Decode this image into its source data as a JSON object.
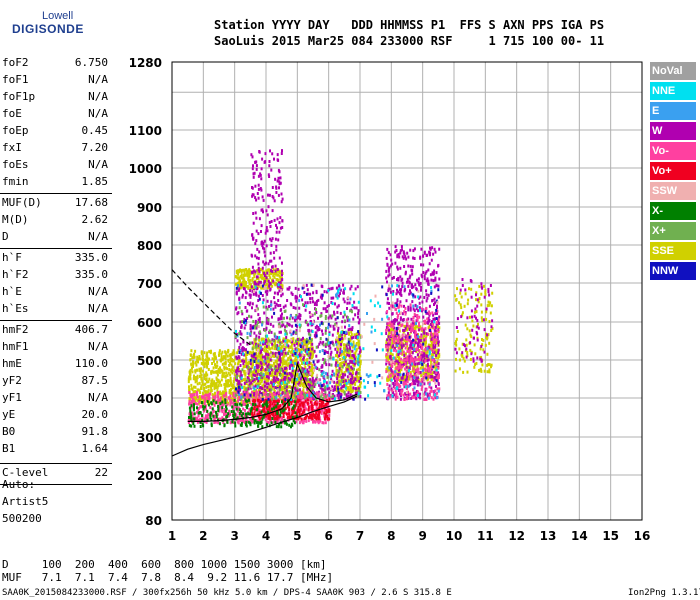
{
  "logo": {
    "line1": "Lowell",
    "line2": "DIGISONDE"
  },
  "header": {
    "row1": "Station YYYY DAY   DDD HHMMSS P1  FFS S AXN PPS IGA PS",
    "row2": "SaoLuis 2015 Mar25 084 233000 RSF     1 715 100 00- 11"
  },
  "params": [
    {
      "label": "foF2",
      "value": "6.750"
    },
    {
      "label": "foF1",
      "value": "N/A"
    },
    {
      "label": "foF1p",
      "value": "N/A"
    },
    {
      "label": "foE",
      "value": "N/A"
    },
    {
      "label": "foEp",
      "value": "0.45"
    },
    {
      "label": "fxI",
      "value": "7.20"
    },
    {
      "label": "foEs",
      "value": "N/A"
    },
    {
      "label": "fmin",
      "value": "1.85"
    },
    {
      "label": "MUF(D)",
      "value": "17.68"
    },
    {
      "label": "M(D)",
      "value": "2.62"
    },
    {
      "label": "D",
      "value": "N/A"
    },
    {
      "label": "h`F",
      "value": "335.0"
    },
    {
      "label": "h`F2",
      "value": "335.0"
    },
    {
      "label": "h`E",
      "value": "N/A"
    },
    {
      "label": "h`Es",
      "value": "N/A"
    },
    {
      "label": "hmF2",
      "value": "406.7"
    },
    {
      "label": "hmF1",
      "value": "N/A"
    },
    {
      "label": "hmE",
      "value": "110.0"
    },
    {
      "label": "yF2",
      "value": "87.5"
    },
    {
      "label": "yF1",
      "value": "N/A"
    },
    {
      "label": "yE",
      "value": "20.0"
    },
    {
      "label": "B0",
      "value": "91.8"
    },
    {
      "label": "B1",
      "value": "1.64"
    },
    {
      "label": "C-level",
      "value": "22"
    }
  ],
  "auto": {
    "line1": "Auto:",
    "line2": "Artist5",
    "line3": "500200"
  },
  "legend": [
    {
      "label": "NoVal",
      "color": "#a0a0a0"
    },
    {
      "label": "NNE",
      "color": "#00e0f0"
    },
    {
      "label": "E",
      "color": "#3aa0f0"
    },
    {
      "label": "W",
      "color": "#b000b0"
    },
    {
      "label": "Vo-",
      "color": "#ff40a0"
    },
    {
      "label": "Vo+",
      "color": "#f00020"
    },
    {
      "label": "SSW",
      "color": "#f0b0b0"
    },
    {
      "label": "X-",
      "color": "#008000"
    },
    {
      "label": "X+",
      "color": "#70b050"
    },
    {
      "label": "SSE",
      "color": "#d0d000"
    },
    {
      "label": "NNW",
      "color": "#1010c0"
    }
  ],
  "footer": {
    "d_row": "D     100  200  400  600  800 1000 1500 3000 [km]",
    "muf_row": "MUF   7.1  7.1  7.4  7.8  8.4  9.2 11.6 17.7 [MHz]",
    "file_info": "SAA0K_2015084233000.RSF / 300fx256h 50 kHz 5.0 km / DPS-4 SAA0K 903 / 2.6 S 315.8 E",
    "version": "Ion2Png 1.3.17"
  },
  "chart_data": {
    "type": "scatter",
    "title": "",
    "xlabel": "",
    "ylabel": "",
    "xlim": [
      1,
      16
    ],
    "ylim": [
      80,
      1280
    ],
    "x_ticks": [
      1,
      2,
      3,
      4,
      5,
      6,
      7,
      8,
      9,
      10,
      11,
      12,
      13,
      14,
      15,
      16
    ],
    "y_ticks": [
      80,
      200,
      300,
      400,
      500,
      600,
      700,
      800,
      900,
      1000,
      1100,
      1280
    ],
    "grid": true,
    "legend_position": "right",
    "profile_curve": {
      "x": [
        1.0,
        1.5,
        2.0,
        2.5,
        3.0,
        3.5,
        4.0,
        4.5,
        5.0,
        5.5,
        6.0,
        6.5,
        6.9
      ],
      "y": [
        250,
        268,
        280,
        290,
        300,
        312,
        325,
        338,
        350,
        365,
        378,
        390,
        405
      ]
    },
    "trace_curve": {
      "x": [
        1.5,
        2.0,
        2.5,
        3.0,
        3.5,
        4.0,
        4.5,
        4.8,
        5.0,
        5.3,
        5.6,
        6.0,
        6.5,
        6.9
      ],
      "y": [
        340,
        340,
        342,
        345,
        350,
        358,
        372,
        400,
        490,
        430,
        400,
        390,
        395,
        410
      ]
    },
    "dashed_curve": {
      "x": [
        1.0,
        1.5,
        2.0,
        2.5,
        3.0,
        3.5
      ],
      "y": [
        735,
        690,
        650,
        610,
        570,
        540
      ]
    },
    "clusters": [
      {
        "name": "SSE",
        "x": [
          1.5,
          3.5
        ],
        "y": [
          390,
          530
        ],
        "n": 600
      },
      {
        "name": "SSE",
        "x": [
          3.5,
          5.5
        ],
        "y": [
          400,
          560
        ],
        "n": 900
      },
      {
        "name": "SSE",
        "x": [
          3.0,
          4.5
        ],
        "y": [
          690,
          740
        ],
        "n": 250
      },
      {
        "name": "SSE",
        "x": [
          6.2,
          7.0
        ],
        "y": [
          420,
          580
        ],
        "n": 300
      },
      {
        "name": "SSE",
        "x": [
          7.8,
          9.5
        ],
        "y": [
          450,
          600
        ],
        "n": 500
      },
      {
        "name": "W",
        "x": [
          3.0,
          7.0
        ],
        "y": [
          400,
          700
        ],
        "n": 900
      },
      {
        "name": "W",
        "x": [
          7.8,
          9.5
        ],
        "y": [
          400,
          800
        ],
        "n": 600
      },
      {
        "name": "W",
        "x": [
          3.5,
          4.5
        ],
        "y": [
          700,
          1050
        ],
        "n": 200
      },
      {
        "name": "Vo-",
        "x": [
          1.5,
          6.0
        ],
        "y": [
          340,
          420
        ],
        "n": 600
      },
      {
        "name": "Vo-",
        "x": [
          7.8,
          9.5
        ],
        "y": [
          400,
          650
        ],
        "n": 300
      },
      {
        "name": "Vo+",
        "x": [
          3.5,
          6.0
        ],
        "y": [
          350,
          400
        ],
        "n": 300
      },
      {
        "name": "X-",
        "x": [
          1.5,
          5.0
        ],
        "y": [
          330,
          400
        ],
        "n": 200
      },
      {
        "name": "X+",
        "x": [
          3.0,
          7.0
        ],
        "y": [
          400,
          650
        ],
        "n": 200
      },
      {
        "name": "NNE",
        "x": [
          3.0,
          9.5
        ],
        "y": [
          400,
          700
        ],
        "n": 120
      },
      {
        "name": "E",
        "x": [
          3.0,
          9.5
        ],
        "y": [
          400,
          700
        ],
        "n": 100
      },
      {
        "name": "NNW",
        "x": [
          3.0,
          9.5
        ],
        "y": [
          400,
          700
        ],
        "n": 80
      },
      {
        "name": "SSW",
        "x": [
          3.0,
          9.5
        ],
        "y": [
          400,
          700
        ],
        "n": 80
      },
      {
        "name": "SSE",
        "x": [
          10.0,
          11.2
        ],
        "y": [
          470,
          700
        ],
        "n": 120
      },
      {
        "name": "W",
        "x": [
          10.0,
          11.2
        ],
        "y": [
          500,
          720
        ],
        "n": 60
      }
    ]
  }
}
